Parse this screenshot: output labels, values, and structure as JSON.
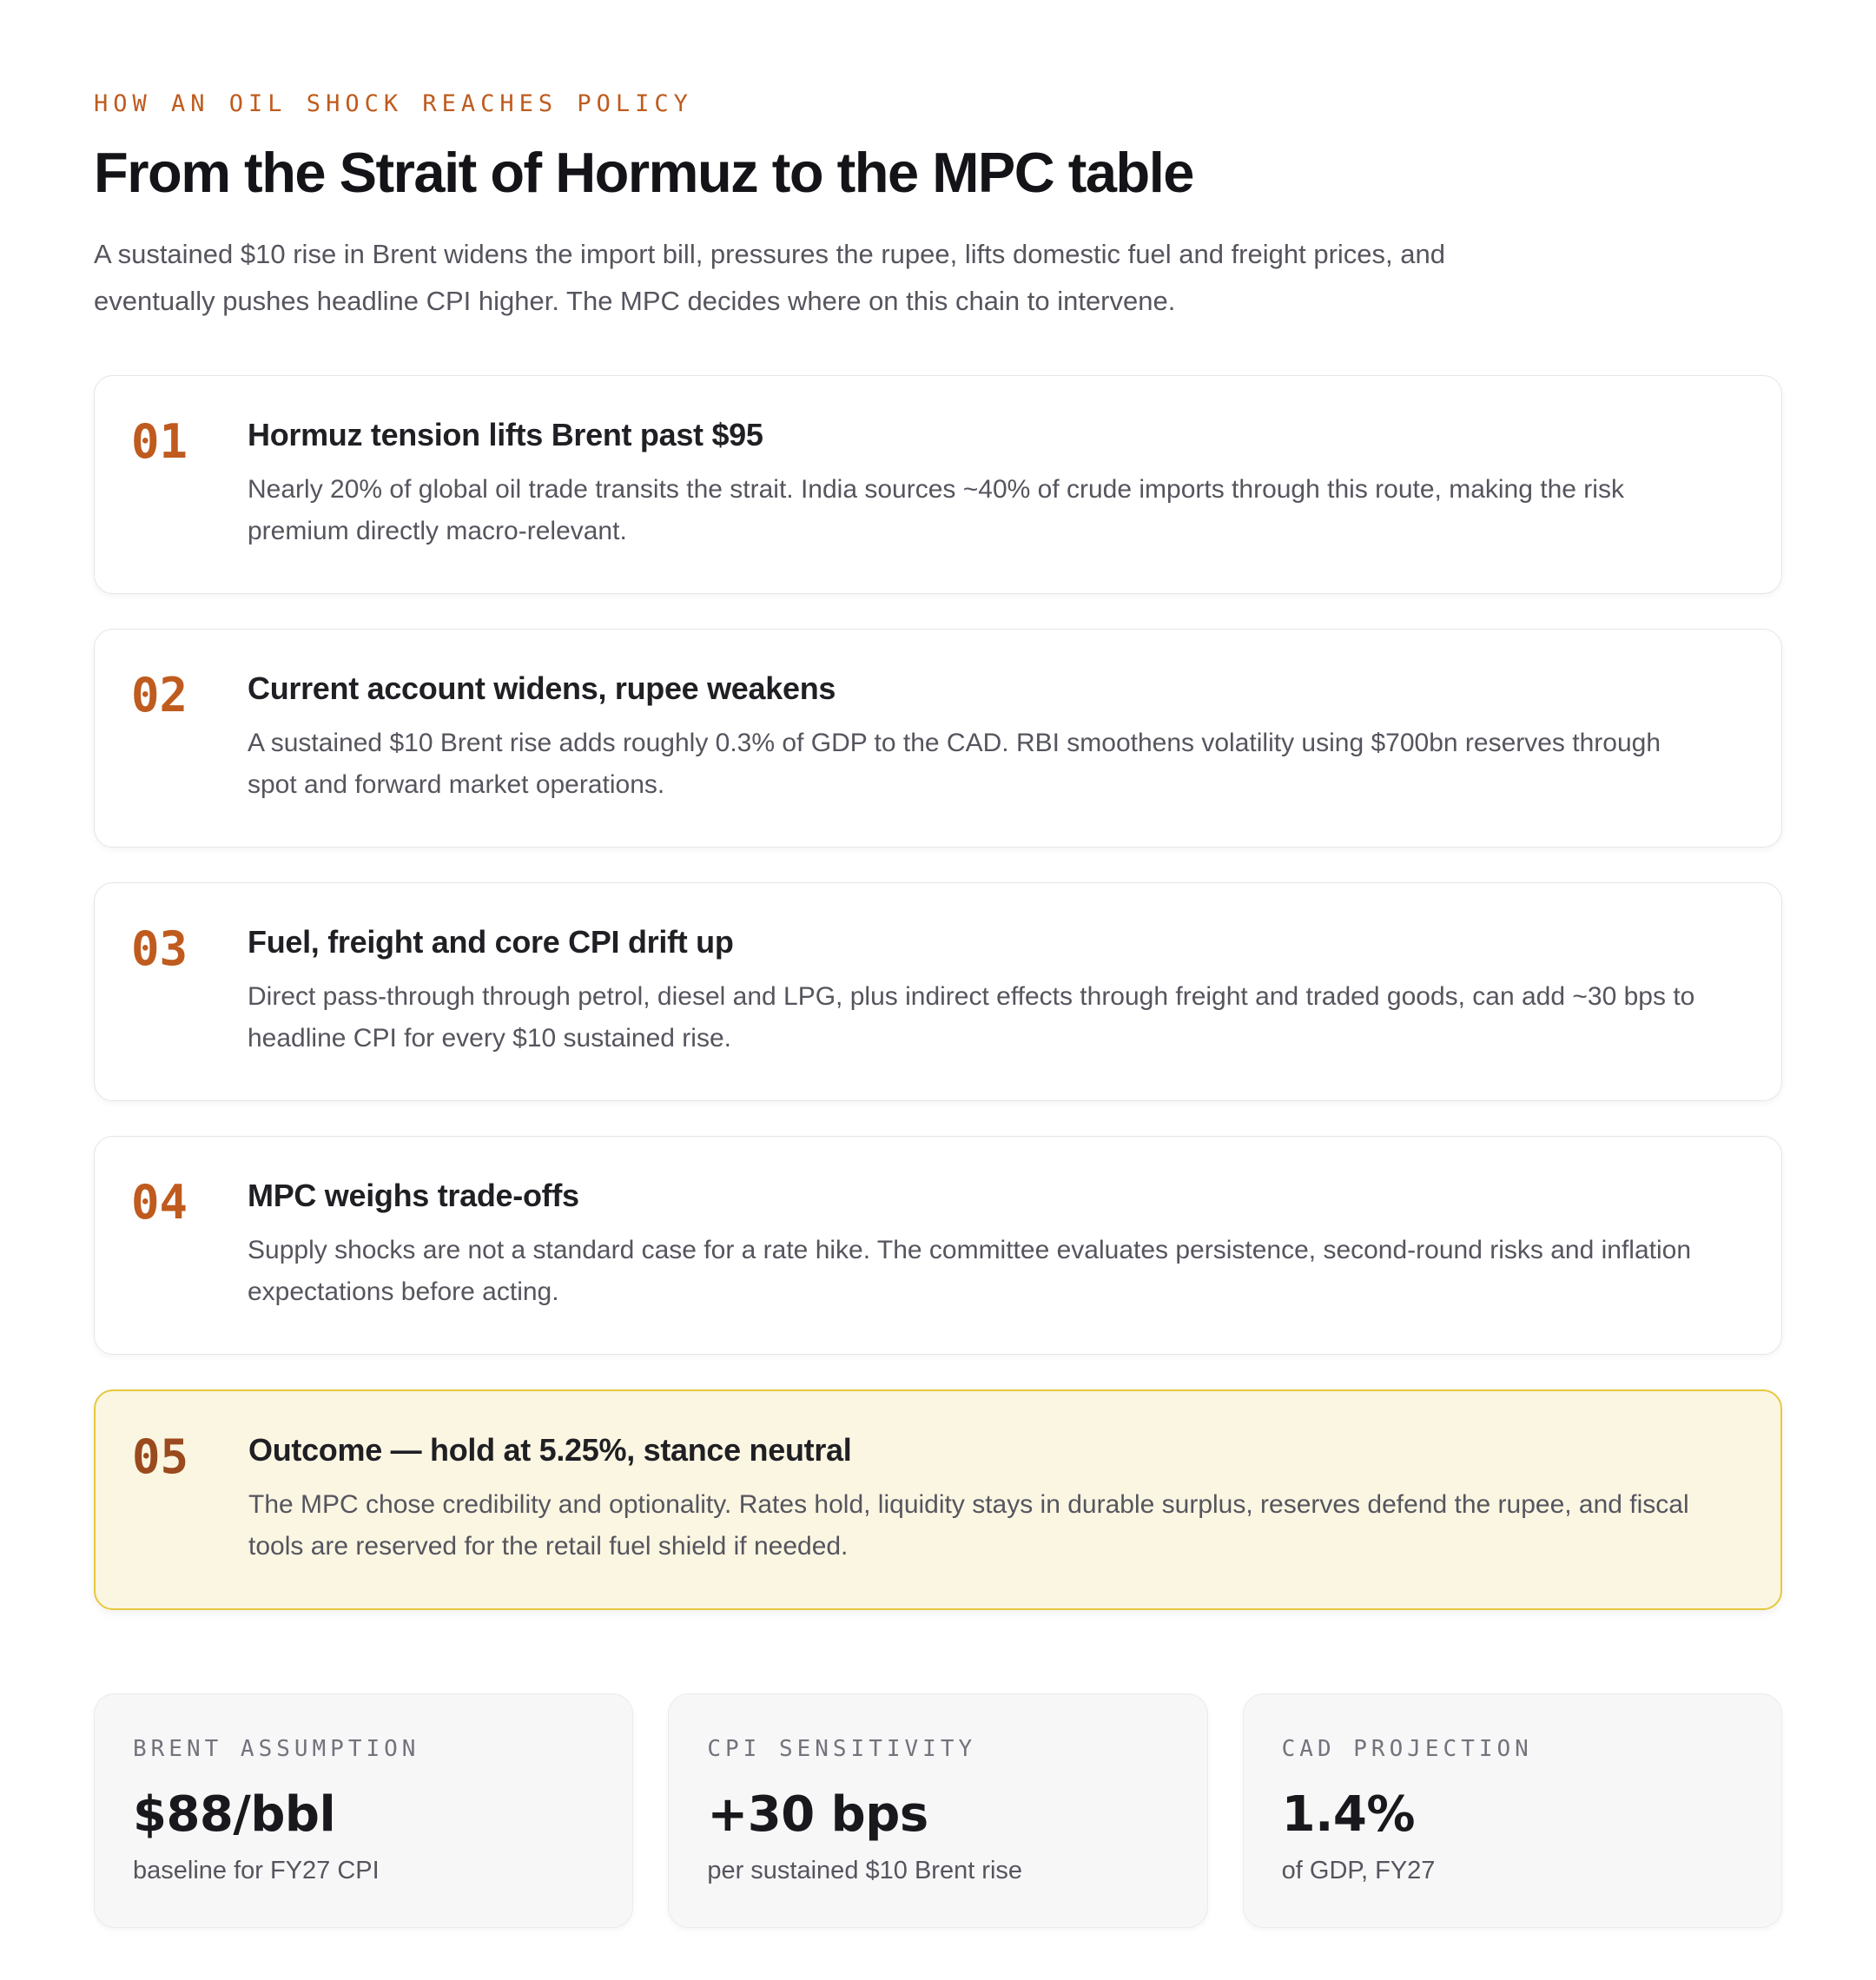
{
  "header": {
    "eyebrow": "HOW AN OIL SHOCK REACHES POLICY",
    "title": "From the Strait of Hormuz to the MPC table",
    "subtitle": "A sustained $10 rise in Brent widens the import bill, pressures the rupee, lifts domestic fuel and freight prices, and eventually pushes headline CPI higher. The MPC decides where on this chain to intervene."
  },
  "steps": [
    {
      "number": "01",
      "title": "Hormuz tension lifts Brent past $95",
      "body": "Nearly 20% of global oil trade transits the strait. India sources ~40% of crude imports through this route, making the risk premium directly macro-relevant.",
      "highlighted": false
    },
    {
      "number": "02",
      "title": "Current account widens, rupee weakens",
      "body": "A sustained $10 Brent rise adds roughly 0.3% of GDP to the CAD. RBI smoothens volatility using $700bn reserves through spot and forward market operations.",
      "highlighted": false
    },
    {
      "number": "03",
      "title": "Fuel, freight and core CPI drift up",
      "body": "Direct pass-through through petrol, diesel and LPG, plus indirect effects through freight and traded goods, can add ~30 bps to headline CPI for every $10 sustained rise.",
      "highlighted": false
    },
    {
      "number": "04",
      "title": "MPC weighs trade-offs",
      "body": "Supply shocks are not a standard case for a rate hike. The committee evaluates persistence, second-round risks and inflation expectations before acting.",
      "highlighted": false
    },
    {
      "number": "05",
      "title": "Outcome — hold at 5.25%, stance neutral",
      "body": "The MPC chose credibility and optionality. Rates hold, liquidity stays in durable surplus, reserves defend the rupee, and fiscal tools are reserved for the retail fuel shield if needed.",
      "highlighted": true
    }
  ],
  "stats": [
    {
      "label": "BRENT ASSUMPTION",
      "value": "$88/bbl",
      "caption": "baseline for FY27 CPI"
    },
    {
      "label": "CPI SENSITIVITY",
      "value": "+30 bps",
      "caption": "per sustained $10 Brent rise"
    },
    {
      "label": "CAD PROJECTION",
      "value": "1.4%",
      "caption": "of GDP, FY27"
    }
  ],
  "colors": {
    "accent_orange": "#bf5b1e",
    "accent_brown": "#9a4a1e",
    "highlight_bg": "#fbf6e2",
    "highlight_border": "#e7c83d",
    "ink": "#1b1b1f",
    "body_gray": "#55555e",
    "label_gray": "#73737c",
    "card_border": "#e5e5e8",
    "stat_bg": "#f7f7f8",
    "stat_border": "#ebebee"
  }
}
